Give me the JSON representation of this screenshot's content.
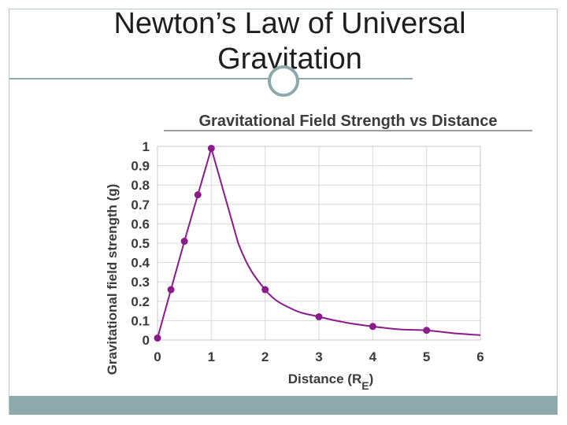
{
  "slide": {
    "title_line1": "Newton’s Law of Universal",
    "title_line2": "Gravitation"
  },
  "colors": {
    "accent": "#8ea9a9",
    "series": "#8b1a8b",
    "grid": "#d9d9d9"
  },
  "chart_data": {
    "type": "line",
    "title": "Gravitational Field Strength vs Distance",
    "xlabel": "Distance (R",
    "xlabel_sub": "E",
    "xlabel_close": ")",
    "ylabel": "Gravitational field strength (g)",
    "xlim": [
      0,
      6
    ],
    "ylim": [
      0,
      1
    ],
    "xticks": [
      "0",
      "1",
      "2",
      "3",
      "4",
      "5",
      "6"
    ],
    "yticks": [
      "0",
      "0.1",
      "0.2",
      "0.3",
      "0.4",
      "0.5",
      "0.6",
      "0.7",
      "0.8",
      "0.9",
      "1"
    ],
    "grid": true,
    "series": [
      {
        "x": [
          0,
          0.25,
          0.5,
          0.75,
          1,
          2,
          3,
          4,
          5
        ],
        "y": [
          0.01,
          0.26,
          0.51,
          0.75,
          0.99,
          0.26,
          0.12,
          0.07,
          0.05
        ]
      }
    ],
    "curve": {
      "x": [
        0,
        0.25,
        0.5,
        0.75,
        1,
        1.5,
        2,
        2.5,
        3,
        3.5,
        4,
        4.5,
        5,
        5.5,
        6
      ],
      "y": [
        0.01,
        0.26,
        0.51,
        0.75,
        0.99,
        0.5,
        0.26,
        0.16,
        0.12,
        0.09,
        0.07,
        0.055,
        0.05,
        0.035,
        0.025
      ]
    }
  }
}
